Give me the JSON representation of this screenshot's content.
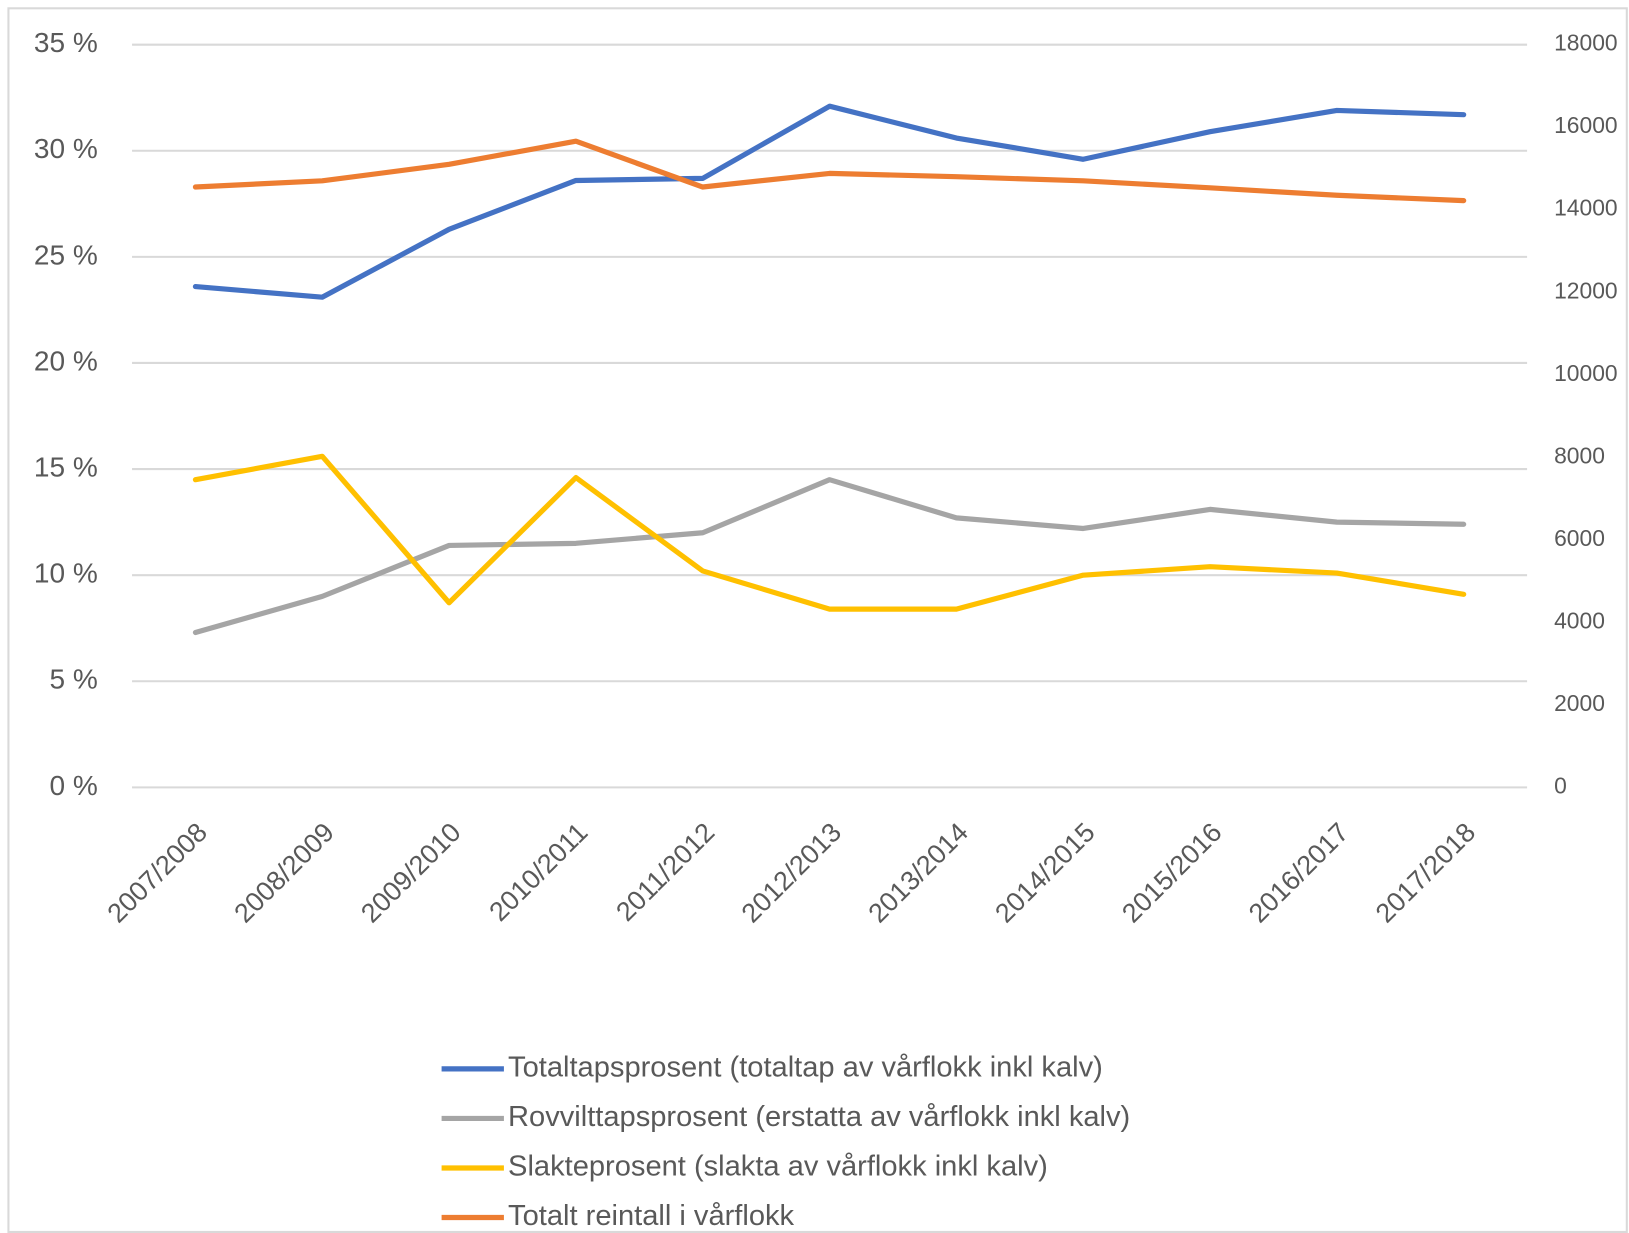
{
  "chart_data": {
    "type": "line",
    "categories": [
      "2007/2008",
      "2008/2009",
      "2009/2010",
      "2010/2011",
      "2011/2012",
      "2012/2013",
      "2013/2014",
      "2014/2015",
      "2015/2016",
      "2016/2017",
      "2017/2018"
    ],
    "series": [
      {
        "name": "Totaltapsprosent (totaltap av vårflokk inkl kalv)",
        "color": "#4472c4",
        "values": [
          23.6,
          23.1,
          26.3,
          28.6,
          28.7,
          32.1,
          30.6,
          29.6,
          30.9,
          31.9,
          31.7
        ]
      },
      {
        "name": "Rovvilttapsprosent (erstatta av vårflokk inkl kalv)",
        "color": "#a5a5a5",
        "values": [
          7.3,
          9.0,
          11.4,
          11.5,
          12.0,
          14.5,
          12.7,
          12.2,
          13.1,
          12.5,
          12.4
        ]
      },
      {
        "name": "Slakteprosent (slakta av vårflokk inkl kalv)",
        "color": "#ffc000",
        "values": [
          14.5,
          15.6,
          8.7,
          14.6,
          10.2,
          8.4,
          8.4,
          10.0,
          10.4,
          10.1,
          9.1
        ]
      },
      {
        "name": "Totalt reintall i vårflokk",
        "color": "#ed7d31",
        "axis": "y2",
        "values": [
          14550,
          14700,
          15100,
          15660,
          14550,
          14880,
          14800,
          14700,
          14530,
          14350,
          14220
        ]
      }
    ],
    "ylim": [
      0,
      35
    ],
    "yticks": [
      {
        "value": 0,
        "label": "0 %"
      },
      {
        "value": 5,
        "label": "5 %"
      },
      {
        "value": 10,
        "label": "10 %"
      },
      {
        "value": 15,
        "label": "15 %"
      },
      {
        "value": 20,
        "label": "20 %"
      },
      {
        "value": 25,
        "label": "25 %"
      },
      {
        "value": 30,
        "label": "30 %"
      },
      {
        "value": 35,
        "label": "35 %"
      }
    ],
    "y2lim": [
      0,
      18000
    ],
    "y2ticks": [
      0,
      2000,
      4000,
      6000,
      8000,
      10000,
      12000,
      14000,
      16000,
      18000
    ],
    "grid": true,
    "legend": "bottom"
  }
}
